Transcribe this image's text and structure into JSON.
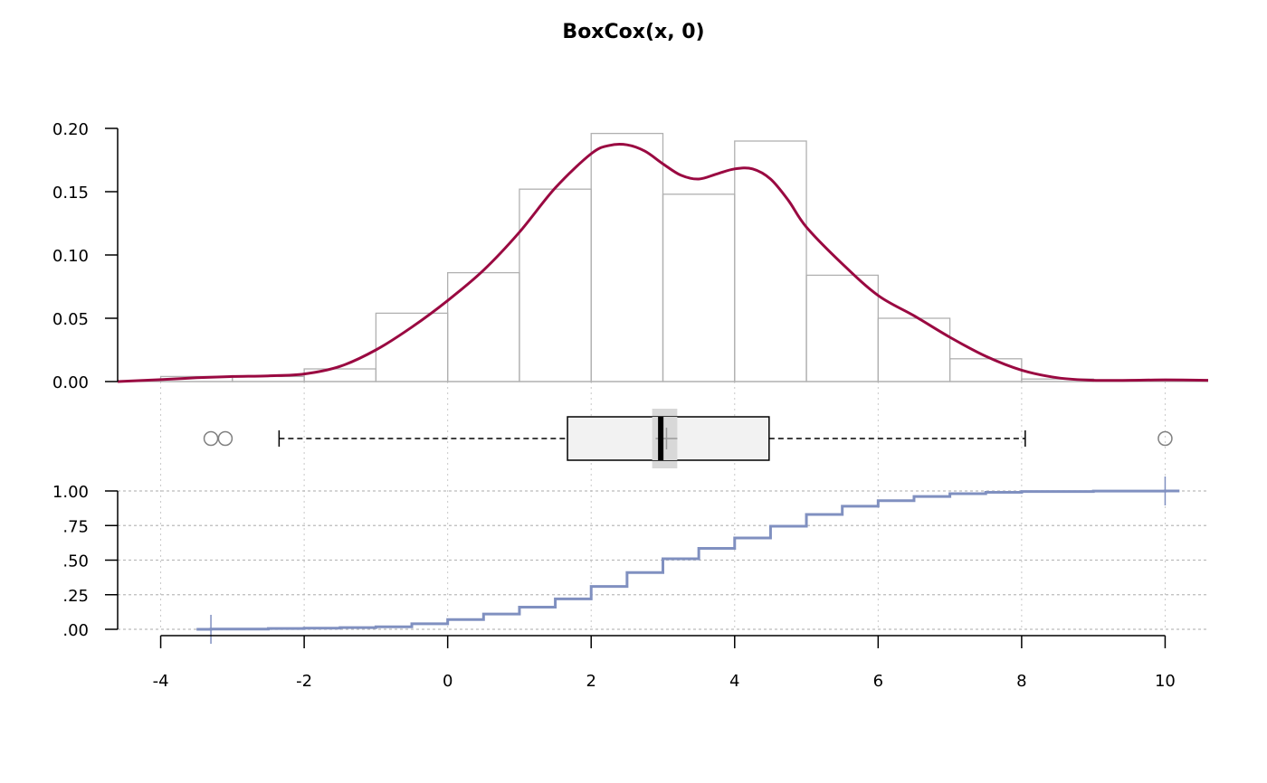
{
  "chart_data": {
    "type": "histogram-density-boxplot-ecdf",
    "title": "BoxCox(x, 0)",
    "xlim": [
      -4.6,
      10.6
    ],
    "x_ticks": [
      -4,
      -2,
      0,
      2,
      4,
      6,
      8,
      10
    ],
    "x_tick_labels": [
      "-4",
      "-2",
      "0",
      "2",
      "4",
      "6",
      "8",
      "10"
    ],
    "histogram": {
      "ylim": [
        0,
        0.2
      ],
      "y_ticks": [
        0,
        0.05,
        0.1,
        0.15,
        0.2
      ],
      "y_tick_labels": [
        "0.00",
        "0.05",
        "0.10",
        "0.15",
        "0.20"
      ],
      "bin_edges": [
        -4,
        -3,
        -2,
        -1,
        0,
        1,
        2,
        3,
        4,
        5,
        6,
        7,
        8,
        9
      ],
      "heights": [
        0.004,
        0.004,
        0.01,
        0.054,
        0.086,
        0.152,
        0.196,
        0.148,
        0.19,
        0.084,
        0.05,
        0.018,
        0.002
      ],
      "color": "#b0b0b0"
    },
    "density": {
      "color": "#9a0941",
      "x": [
        -4.6,
        -4,
        -3.5,
        -3,
        -2.5,
        -2,
        -1.5,
        -1,
        -0.5,
        0,
        0.5,
        1,
        1.5,
        2,
        2.25,
        2.5,
        2.75,
        3,
        3.25,
        3.5,
        3.75,
        4,
        4.25,
        4.5,
        4.75,
        5,
        5.5,
        6,
        6.5,
        7,
        7.5,
        8,
        8.5,
        9,
        9.5,
        10,
        10.6
      ],
      "y": [
        0.0,
        0.0015,
        0.003,
        0.004,
        0.0045,
        0.006,
        0.012,
        0.025,
        0.043,
        0.064,
        0.088,
        0.118,
        0.153,
        0.18,
        0.1865,
        0.187,
        0.182,
        0.172,
        0.163,
        0.16,
        0.164,
        0.168,
        0.168,
        0.16,
        0.143,
        0.122,
        0.093,
        0.068,
        0.052,
        0.035,
        0.02,
        0.009,
        0.003,
        0.001,
        0.001,
        0.0013,
        0.001
      ]
    },
    "boxplot": {
      "lower_whisker": -2.35,
      "q1": 1.67,
      "median": 2.97,
      "q3": 4.48,
      "upper_whisker": 8.05,
      "mean": 3.05,
      "median_ci": [
        2.85,
        3.2
      ],
      "outliers": [
        -3.3,
        -3.1,
        10.0
      ]
    },
    "ecdf": {
      "color": "#8090c0",
      "ylim": [
        0,
        1
      ],
      "y_ticks": [
        0,
        0.25,
        0.5,
        0.75,
        1
      ],
      "y_tick_labels": [
        ".00",
        ".25",
        ".50",
        ".75",
        "1.00"
      ],
      "x": [
        -3.5,
        -3.3,
        -2.5,
        -2,
        -1.5,
        -1,
        -0.5,
        0,
        0.5,
        1,
        1.5,
        2,
        2.5,
        3,
        3.5,
        4,
        4.5,
        5,
        5.5,
        6,
        6.5,
        7,
        7.5,
        8,
        9,
        10,
        10.2
      ],
      "y": [
        0.0,
        0.002,
        0.006,
        0.008,
        0.012,
        0.018,
        0.04,
        0.07,
        0.11,
        0.16,
        0.22,
        0.31,
        0.41,
        0.51,
        0.585,
        0.66,
        0.745,
        0.83,
        0.89,
        0.93,
        0.96,
        0.98,
        0.99,
        0.996,
        0.999,
        1.0,
        1.0
      ],
      "end_ticks": [
        -3.3,
        10.0
      ]
    }
  }
}
